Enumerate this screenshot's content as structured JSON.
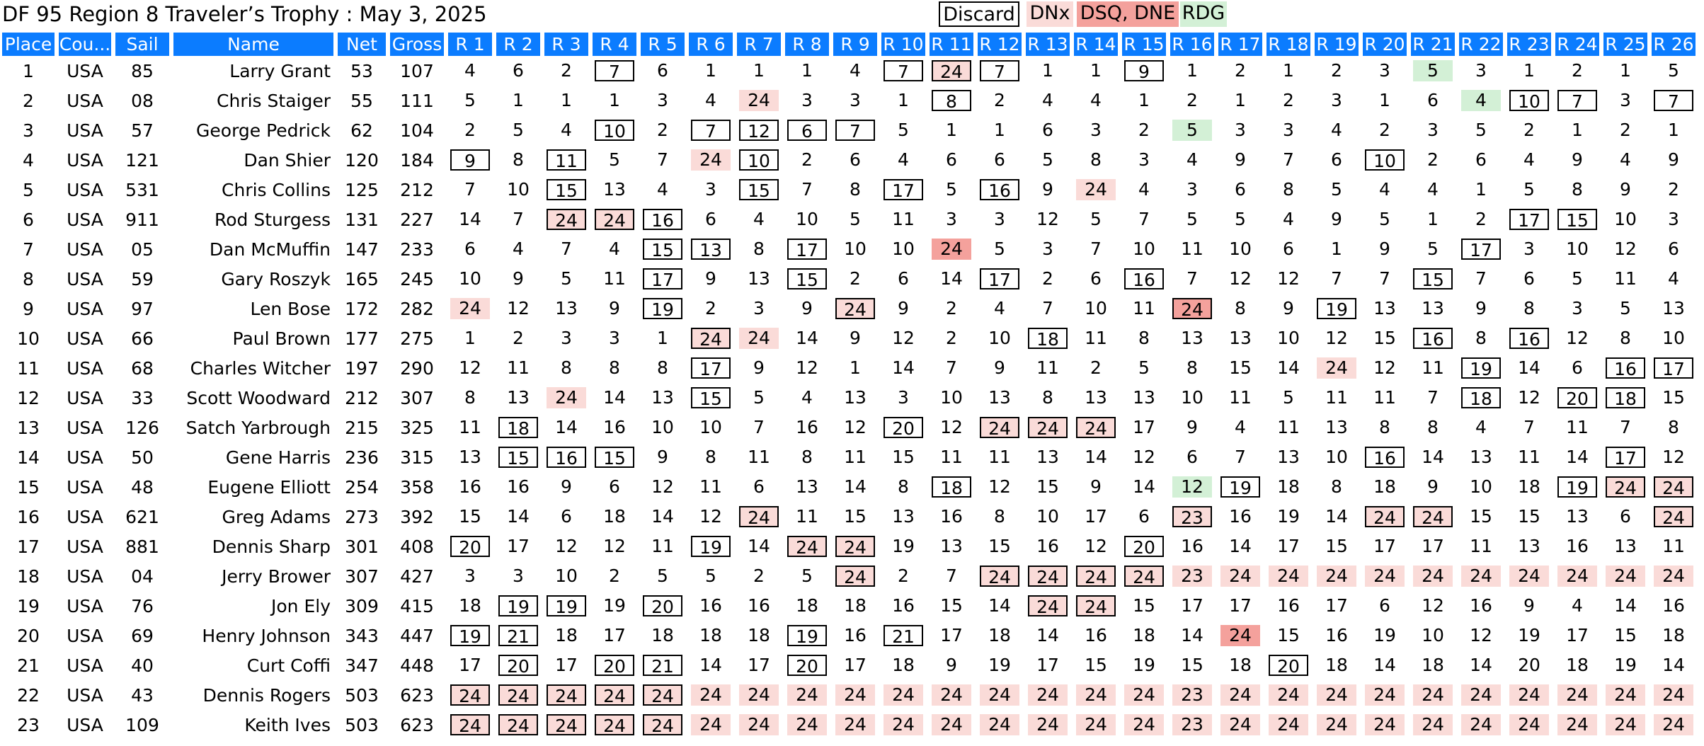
{
  "header": {
    "title": "DF 95 Region 8 Traveler’s Trophy  :  May 3, 2025",
    "legend": {
      "discard": "Discard",
      "dnx": "DNx",
      "dsq": "DSQ, DNE",
      "rdg": "RDG"
    }
  },
  "columns": [
    "Place",
    "Cou...",
    "Sail",
    "Name",
    "Net",
    "Gross",
    "R 1",
    "R 2",
    "R 3",
    "R 4",
    "R 5",
    "R 6",
    "R 7",
    "R 8",
    "R 9",
    "R 10",
    "R 11",
    "R 12",
    "R 13",
    "R 14",
    "R 15",
    "R 16",
    "R 17",
    "R 18",
    "R 19",
    "R 20",
    "R 21",
    "R 22",
    "R 23",
    "R 24",
    "R 25",
    "R 26"
  ],
  "rows": [
    {
      "place": "1",
      "country": "USA",
      "sail": "85",
      "name": "Larry Grant",
      "net": "53",
      "gross": "107",
      "races": [
        "4",
        "6",
        "2",
        "7:d",
        "6",
        "1",
        "1",
        "1",
        "4",
        "7:d",
        "24:dn",
        "7:d",
        "1",
        "1",
        "9:d",
        "1",
        "2",
        "1",
        "2",
        "3",
        "5:r",
        "3",
        "1",
        "2",
        "1",
        "5"
      ]
    },
    {
      "place": "2",
      "country": "USA",
      "sail": "08",
      "name": "Chris Staiger",
      "net": "55",
      "gross": "111",
      "races": [
        "5",
        "1",
        "1",
        "1",
        "3",
        "4",
        "24:n",
        "3",
        "3",
        "1",
        "8:d",
        "2",
        "4",
        "4",
        "1",
        "2",
        "1",
        "2",
        "3",
        "1",
        "6",
        "4:r",
        "10:d",
        "7:d",
        "3",
        "7:d"
      ]
    },
    {
      "place": "3",
      "country": "USA",
      "sail": "57",
      "name": "George Pedrick",
      "net": "62",
      "gross": "104",
      "races": [
        "2",
        "5",
        "4",
        "10:d",
        "2",
        "7:d",
        "12:d",
        "6:d",
        "7:d",
        "5",
        "1",
        "1",
        "6",
        "3",
        "2",
        "5:r",
        "3",
        "3",
        "4",
        "2",
        "3",
        "5",
        "2",
        "1",
        "2",
        "1"
      ]
    },
    {
      "place": "4",
      "country": "USA",
      "sail": "121",
      "name": "Dan Shier",
      "net": "120",
      "gross": "184",
      "races": [
        "9:d",
        "8",
        "11:d",
        "5",
        "7",
        "24:n",
        "10:d",
        "2",
        "6",
        "4",
        "6",
        "6",
        "5",
        "8",
        "3",
        "4",
        "9",
        "7",
        "6",
        "10:d",
        "2",
        "6",
        "4",
        "9",
        "4",
        "9"
      ]
    },
    {
      "place": "5",
      "country": "USA",
      "sail": "531",
      "name": "Chris Collins",
      "net": "125",
      "gross": "212",
      "races": [
        "7",
        "10",
        "15:d",
        "13",
        "4",
        "3",
        "15:d",
        "7",
        "8",
        "17:d",
        "5",
        "16:d",
        "9",
        "24:n",
        "4",
        "3",
        "6",
        "8",
        "5",
        "4",
        "4",
        "1",
        "5",
        "8",
        "9",
        "2"
      ]
    },
    {
      "place": "6",
      "country": "USA",
      "sail": "911",
      "name": "Rod Sturgess",
      "net": "131",
      "gross": "227",
      "races": [
        "14",
        "7",
        "24:dn",
        "24:dn",
        "16:d",
        "6",
        "4",
        "10",
        "5",
        "11",
        "3",
        "3",
        "12",
        "5",
        "7",
        "5",
        "5",
        "4",
        "9",
        "5",
        "1",
        "2",
        "17:d",
        "15:d",
        "10",
        "3"
      ]
    },
    {
      "place": "7",
      "country": "USA",
      "sail": "05",
      "name": "Dan McMuffin",
      "net": "147",
      "gross": "233",
      "races": [
        "6",
        "4",
        "7",
        "4",
        "15:d",
        "13:d",
        "8",
        "17:d",
        "10",
        "10",
        "24:s",
        "5",
        "3",
        "7",
        "10",
        "11",
        "10",
        "6",
        "1",
        "9",
        "5",
        "17:d",
        "3",
        "10",
        "12",
        "6"
      ]
    },
    {
      "place": "8",
      "country": "USA",
      "sail": "59",
      "name": "Gary Roszyk",
      "net": "165",
      "gross": "245",
      "races": [
        "10",
        "9",
        "5",
        "11",
        "17:d",
        "9",
        "13",
        "15:d",
        "2",
        "6",
        "14",
        "17:d",
        "2",
        "6",
        "16:d",
        "7",
        "12",
        "12",
        "7",
        "7",
        "15:d",
        "7",
        "6",
        "5",
        "11",
        "4"
      ]
    },
    {
      "place": "9",
      "country": "USA",
      "sail": "97",
      "name": "Len Bose",
      "net": "172",
      "gross": "282",
      "races": [
        "24:n",
        "12",
        "13",
        "9",
        "19:d",
        "2",
        "3",
        "9",
        "24:dn",
        "9",
        "2",
        "4",
        "7",
        "10",
        "11",
        "24:ds",
        "8",
        "9",
        "19:d",
        "13",
        "13",
        "9",
        "8",
        "3",
        "5",
        "13"
      ]
    },
    {
      "place": "10",
      "country": "USA",
      "sail": "66",
      "name": "Paul Brown",
      "net": "177",
      "gross": "275",
      "races": [
        "1",
        "2",
        "3",
        "3",
        "1",
        "24:dn",
        "24:n",
        "14",
        "9",
        "12",
        "2",
        "10",
        "18:d",
        "11",
        "8",
        "13",
        "13",
        "10",
        "12",
        "15",
        "16:d",
        "8",
        "16:d",
        "12",
        "8",
        "10"
      ]
    },
    {
      "place": "11",
      "country": "USA",
      "sail": "68",
      "name": "Charles Witcher",
      "net": "197",
      "gross": "290",
      "races": [
        "12",
        "11",
        "8",
        "8",
        "8",
        "17:d",
        "9",
        "12",
        "1",
        "14",
        "7",
        "9",
        "11",
        "2",
        "5",
        "8",
        "15",
        "14",
        "24:n",
        "12",
        "11",
        "19:d",
        "14",
        "6",
        "16:d",
        "17:d"
      ]
    },
    {
      "place": "12",
      "country": "USA",
      "sail": "33",
      "name": "Scott Woodward",
      "net": "212",
      "gross": "307",
      "races": [
        "8",
        "13",
        "24:n",
        "14",
        "13",
        "15:d",
        "5",
        "4",
        "13",
        "3",
        "10",
        "13",
        "8",
        "13",
        "13",
        "10",
        "11",
        "5",
        "11",
        "11",
        "7",
        "18:d",
        "12",
        "20:d",
        "18:d",
        "15"
      ]
    },
    {
      "place": "13",
      "country": "USA",
      "sail": "126",
      "name": "Satch Yarbrough",
      "net": "215",
      "gross": "325",
      "races": [
        "11",
        "18:d",
        "14",
        "16",
        "10",
        "10",
        "7",
        "16",
        "12",
        "20:d",
        "12",
        "24:dn",
        "24:dn",
        "24:dn",
        "17",
        "9",
        "4",
        "11",
        "13",
        "8",
        "8",
        "4",
        "7",
        "11",
        "7",
        "8"
      ]
    },
    {
      "place": "14",
      "country": "USA",
      "sail": "50",
      "name": "Gene Harris",
      "net": "236",
      "gross": "315",
      "races": [
        "13",
        "15:d",
        "16:d",
        "15:d",
        "9",
        "8",
        "11",
        "8",
        "11",
        "15",
        "11",
        "11",
        "13",
        "14",
        "12",
        "6",
        "7",
        "13",
        "10",
        "16:d",
        "14",
        "13",
        "11",
        "14",
        "17:d",
        "12"
      ]
    },
    {
      "place": "15",
      "country": "USA",
      "sail": "48",
      "name": "Eugene Elliott",
      "net": "254",
      "gross": "358",
      "races": [
        "16",
        "16",
        "9",
        "6",
        "12",
        "11",
        "6",
        "13",
        "14",
        "8",
        "18:d",
        "12",
        "15",
        "9",
        "14",
        "12:r",
        "19:d",
        "18",
        "8",
        "18",
        "9",
        "10",
        "18",
        "19:d",
        "24:dn",
        "24:dn"
      ]
    },
    {
      "place": "16",
      "country": "USA",
      "sail": "621",
      "name": "Greg Adams",
      "net": "273",
      "gross": "392",
      "races": [
        "15",
        "14",
        "6",
        "18",
        "14",
        "12",
        "24:dn",
        "11",
        "15",
        "13",
        "16",
        "8",
        "10",
        "17",
        "6",
        "23:dn",
        "16",
        "19",
        "14",
        "24:dn",
        "24:dn",
        "15",
        "15",
        "13",
        "6",
        "24:dn"
      ]
    },
    {
      "place": "17",
      "country": "USA",
      "sail": "881",
      "name": "Dennis Sharp",
      "net": "301",
      "gross": "408",
      "races": [
        "20:d",
        "17",
        "12",
        "12",
        "11",
        "19:d",
        "14",
        "24:dn",
        "24:dn",
        "19",
        "13",
        "15",
        "16",
        "12",
        "20:d",
        "16",
        "14",
        "17",
        "15",
        "17",
        "17",
        "11",
        "13",
        "16",
        "13",
        "11"
      ]
    },
    {
      "place": "18",
      "country": "USA",
      "sail": "04",
      "name": "Jerry Brower",
      "net": "307",
      "gross": "427",
      "races": [
        "3",
        "3",
        "10",
        "2",
        "5",
        "5",
        "2",
        "5",
        "24:dn",
        "2",
        "7",
        "24:dn",
        "24:dn",
        "24:dn",
        "24:dn",
        "23:n",
        "24:n",
        "24:n",
        "24:n",
        "24:n",
        "24:n",
        "24:n",
        "24:n",
        "24:n",
        "24:n",
        "24:n"
      ]
    },
    {
      "place": "19",
      "country": "USA",
      "sail": "76",
      "name": "Jon Ely",
      "net": "309",
      "gross": "415",
      "races": [
        "18",
        "19:d",
        "19:d",
        "19",
        "20:d",
        "16",
        "16",
        "18",
        "18",
        "16",
        "15",
        "14",
        "24:dn",
        "24:dn",
        "15",
        "17",
        "17",
        "16",
        "17",
        "6",
        "12",
        "16",
        "9",
        "4",
        "14",
        "16"
      ]
    },
    {
      "place": "20",
      "country": "USA",
      "sail": "69",
      "name": "Henry Johnson",
      "net": "343",
      "gross": "447",
      "races": [
        "19:d",
        "21:d",
        "18",
        "17",
        "18",
        "18",
        "18",
        "19:d",
        "16",
        "21:d",
        "17",
        "18",
        "14",
        "16",
        "18",
        "14",
        "24:s",
        "15",
        "16",
        "19",
        "10",
        "12",
        "19",
        "17",
        "15",
        "18"
      ]
    },
    {
      "place": "21",
      "country": "USA",
      "sail": "40",
      "name": "Curt Coffi",
      "net": "347",
      "gross": "448",
      "races": [
        "17",
        "20:d",
        "17",
        "20:d",
        "21:d",
        "14",
        "17",
        "20:d",
        "17",
        "18",
        "9",
        "19",
        "17",
        "15",
        "19",
        "15",
        "18",
        "20:d",
        "18",
        "14",
        "18",
        "14",
        "20",
        "18",
        "19",
        "14"
      ]
    },
    {
      "place": "22",
      "country": "USA",
      "sail": "43",
      "name": "Dennis Rogers",
      "net": "503",
      "gross": "623",
      "races": [
        "24:dn",
        "24:dn",
        "24:dn",
        "24:dn",
        "24:dn",
        "24:n",
        "24:n",
        "24:n",
        "24:n",
        "24:n",
        "24:n",
        "24:n",
        "24:n",
        "24:n",
        "24:n",
        "23:n",
        "24:n",
        "24:n",
        "24:n",
        "24:n",
        "24:n",
        "24:n",
        "24:n",
        "24:n",
        "24:n",
        "24:n"
      ]
    },
    {
      "place": "23",
      "country": "USA",
      "sail": "109",
      "name": "Keith Ives",
      "net": "503",
      "gross": "623",
      "races": [
        "24:dn",
        "24:dn",
        "24:dn",
        "24:dn",
        "24:dn",
        "24:n",
        "24:n",
        "24:n",
        "24:n",
        "24:n",
        "24:n",
        "24:n",
        "24:n",
        "24:n",
        "24:n",
        "23:n",
        "24:n",
        "24:n",
        "24:n",
        "24:n",
        "24:n",
        "24:n",
        "24:n",
        "24:n",
        "24:n",
        "24:n"
      ]
    }
  ]
}
